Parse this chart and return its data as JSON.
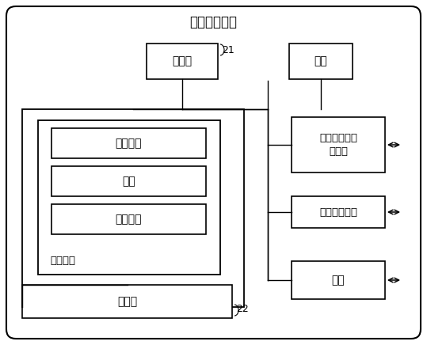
{
  "title": "人机交互设备",
  "label_21": "21",
  "label_22": "22",
  "processor_label": "处理器",
  "power_label": "电源",
  "os_label": "操作系统",
  "data_label": "数据",
  "app_label": "应用程序",
  "medium_label": "存储介质",
  "storage_label": "存储器",
  "net_label": "有线或无线网\n络接口",
  "io_label": "输入输出接口",
  "keyboard_label": "键盘",
  "bg_color": "#ffffff",
  "line_color": "#000000"
}
